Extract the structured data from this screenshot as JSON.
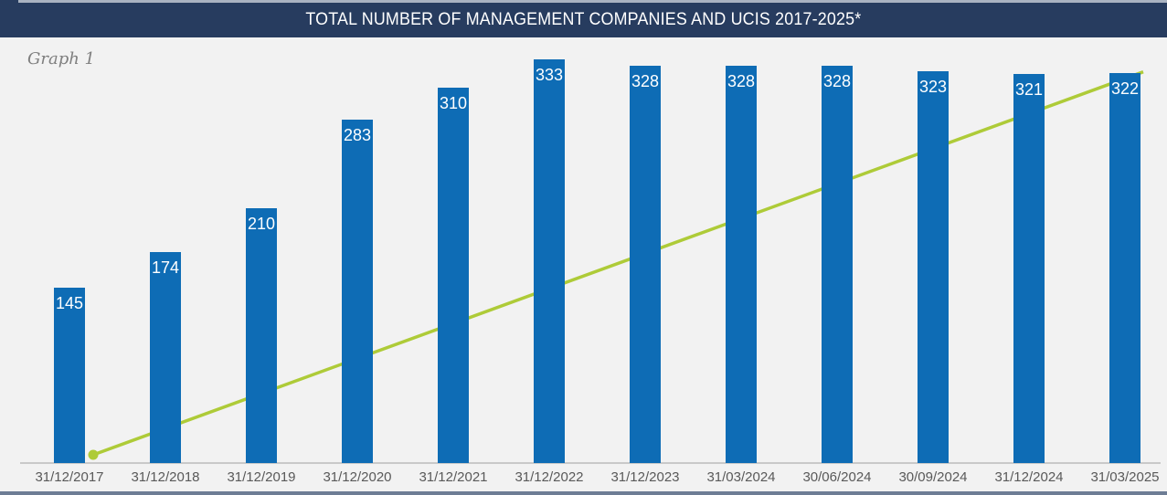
{
  "header": {
    "title": "TOTAL NUMBER OF MANAGEMENT COMPANIES AND UCIS 2017-2025*",
    "graph_label": "Graph 1"
  },
  "chart_data": {
    "type": "bar",
    "title": "TOTAL NUMBER OF MANAGEMENT COMPANIES AND UCIS 2017-2025*",
    "categories": [
      "31/12/2017",
      "31/12/2018",
      "31/12/2019",
      "31/12/2020",
      "31/12/2021",
      "31/12/2022",
      "31/12/2023",
      "31/03/2024",
      "30/06/2024",
      "30/09/2024",
      "31/12/2024",
      "31/03/2025"
    ],
    "values": [
      145,
      174,
      210,
      283,
      310,
      333,
      328,
      328,
      328,
      323,
      321,
      322
    ],
    "data_labels_shown": true,
    "xlabel": "",
    "ylabel": "",
    "ylim": [
      0,
      350
    ],
    "grid": false,
    "legend": false,
    "annotations": [
      {
        "type": "trend-line",
        "description": "straight yellow-green line rising from the base of the first category to the top of the last bar, drawn behind the bars",
        "start_marker": "filled-circle",
        "end_marker": "none"
      }
    ]
  },
  "colors": {
    "header_navy": "#273C5F",
    "bar_blue": "#0E6CB5",
    "trend_green": "#AECB38",
    "background": "#F2F2F2",
    "axis_gray": "#C9C9C9",
    "x_label_gray": "#595959",
    "value_label_white": "#FFFFFF",
    "top_strip": "#A9B3C1",
    "bottom_strip": "#6E7D95"
  }
}
